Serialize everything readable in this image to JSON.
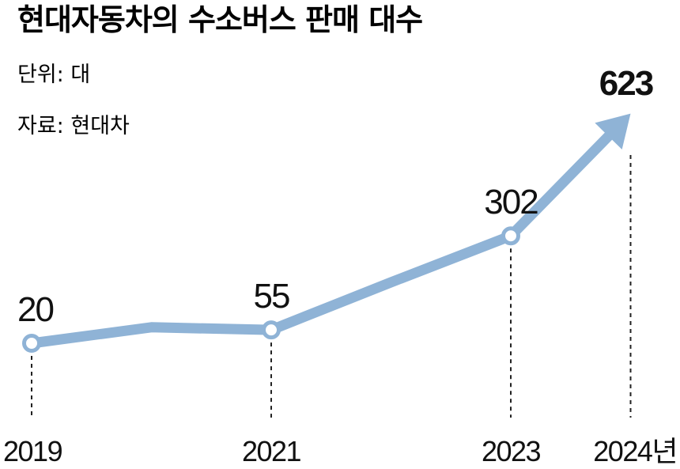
{
  "title": "현대자동차의 수소버스 판매 대수",
  "unit_label": "단위: 대",
  "source_label": "자료: 현대차",
  "colors": {
    "line": "#8fb3d6",
    "marker_fill": "#ffffff",
    "text": "#111111",
    "guide": "#222222"
  },
  "chart_data": {
    "type": "line",
    "title": "현대자동차의 수소버스 판매 대수",
    "x": [
      2019,
      2020,
      2021,
      2022,
      2023,
      2024
    ],
    "values": [
      20,
      62,
      55,
      180,
      302,
      623
    ],
    "labeled_points": [
      {
        "x": 2019,
        "value": 20,
        "label": "20"
      },
      {
        "x": 2021,
        "value": 55,
        "label": "55"
      },
      {
        "x": 2023,
        "value": 302,
        "label": "302"
      },
      {
        "x": 2024,
        "value": 623,
        "label": "623"
      }
    ],
    "x_ticks": [
      {
        "x": 2019,
        "label": "2019"
      },
      {
        "x": 2021,
        "label": "2021"
      },
      {
        "x": 2023,
        "label": "2023"
      },
      {
        "x": 2024,
        "label": "2024년"
      }
    ],
    "ylabel": "",
    "xlabel": "",
    "grid": false,
    "legend": "none"
  }
}
